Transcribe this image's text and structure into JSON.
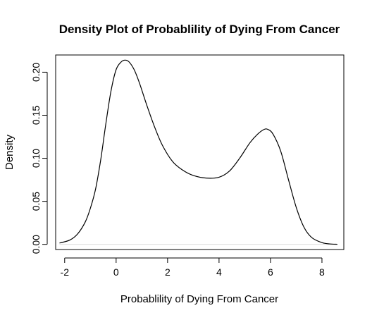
{
  "chart_data": {
    "type": "line",
    "title": "Density Plot of Probablility of Dying From Cancer",
    "xlabel": "Probablility of Dying From Cancer",
    "ylabel": "Density",
    "xlim": [
      -2.35,
      8.85
    ],
    "ylim": [
      -0.006,
      0.22
    ],
    "x_ticks": [
      "-2",
      "0",
      "2",
      "4",
      "6",
      "8"
    ],
    "y_ticks": [
      "0.00",
      "0.05",
      "0.10",
      "0.15",
      "0.20"
    ],
    "grid": false,
    "series": [
      {
        "x": [
          -2.2,
          -1.8,
          -1.5,
          -1.2,
          -1.0,
          -0.8,
          -0.6,
          -0.4,
          -0.2,
          0.0,
          0.2,
          0.35,
          0.5,
          0.7,
          0.9,
          1.2,
          1.5,
          1.8,
          2.2,
          2.6,
          3.0,
          3.5,
          4.0,
          4.4,
          4.8,
          5.2,
          5.5,
          5.75,
          5.9,
          6.1,
          6.4,
          6.7,
          7.0,
          7.3,
          7.6,
          8.0,
          8.3,
          8.6
        ],
        "y": [
          0.0015,
          0.005,
          0.012,
          0.026,
          0.042,
          0.064,
          0.098,
          0.14,
          0.178,
          0.203,
          0.212,
          0.214,
          0.212,
          0.203,
          0.188,
          0.161,
          0.136,
          0.115,
          0.096,
          0.086,
          0.08,
          0.077,
          0.078,
          0.085,
          0.1,
          0.118,
          0.128,
          0.1335,
          0.1335,
          0.128,
          0.108,
          0.075,
          0.043,
          0.02,
          0.008,
          0.002,
          0.0005,
          0.0001
        ]
      }
    ],
    "baseline_color": "#dddddd",
    "line_color": "#000000"
  }
}
